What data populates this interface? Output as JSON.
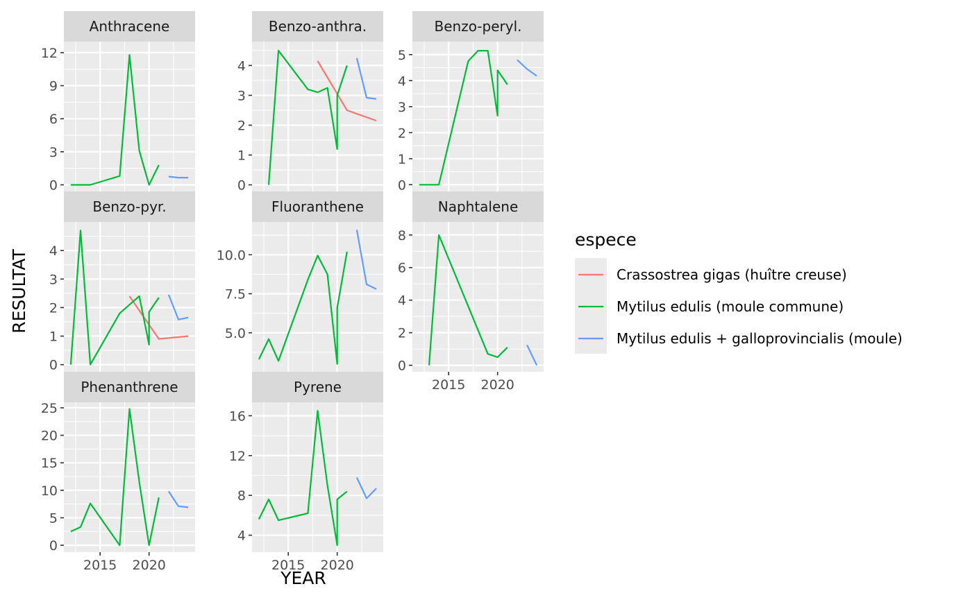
{
  "chart_data": {
    "type": "line",
    "facet_wrap": true,
    "xlabel": "YEAR",
    "ylabel": "RESULTAT",
    "x_ticks": [
      2015,
      2020
    ],
    "xlim": [
      2011.3,
      2024.7
    ],
    "legend": {
      "title": "espece",
      "position": "right",
      "entries": [
        "Crassostrea gigas (huître creuse)",
        "Mytilus edulis (moule commune)",
        "Mytilus edulis + galloprovincialis (moule)"
      ],
      "colors": [
        "#F8766D",
        "#00BA38",
        "#619CFF"
      ]
    },
    "panels": [
      {
        "name": "Anthracene",
        "ylim": [
          -0.6,
          13.0
        ],
        "y_ticks": [
          0,
          3,
          6,
          9,
          12
        ],
        "series": [
          {
            "species": 1,
            "x": [
              2012,
              2014,
              2017,
              2018,
              2019,
              2020,
              2021
            ],
            "y": [
              0,
              0,
              0.8,
              11.8,
              3.1,
              0,
              1.8
            ]
          },
          {
            "species": 2,
            "x": [
              2022,
              2023,
              2024
            ],
            "y": [
              0.75,
              0.65,
              0.65
            ]
          }
        ]
      },
      {
        "name": "Benzo-anthra.",
        "ylim": [
          -0.22,
          4.8
        ],
        "y_ticks": [
          0,
          1,
          2,
          3,
          4
        ],
        "series": [
          {
            "species": 0,
            "x": [
              2018,
              2020,
              2021,
              2024
            ],
            "y": [
              4.15,
              3.05,
              2.5,
              2.15
            ]
          },
          {
            "species": 1,
            "x": [
              2013,
              2014,
              2017,
              2018,
              2019,
              2020,
              2020,
              2021
            ],
            "y": [
              0,
              4.5,
              3.2,
              3.1,
              3.25,
              1.2,
              3.0,
              4.0
            ]
          },
          {
            "species": 2,
            "x": [
              2022,
              2023,
              2024
            ],
            "y": [
              4.25,
              2.92,
              2.88
            ]
          }
        ]
      },
      {
        "name": "Benzo-peryl.",
        "ylim": [
          -0.26,
          5.5
        ],
        "y_ticks": [
          0,
          1,
          2,
          3,
          4,
          5
        ],
        "series": [
          {
            "species": 1,
            "x": [
              2012,
              2014,
              2017,
              2018,
              2019,
              2020,
              2020,
              2021
            ],
            "y": [
              0,
              0,
              4.75,
              5.15,
              5.15,
              2.65,
              4.4,
              3.85
            ]
          },
          {
            "species": 2,
            "x": [
              2022,
              2023,
              2024
            ],
            "y": [
              4.8,
              4.45,
              4.18
            ]
          }
        ]
      },
      {
        "name": "Benzo-pyr.",
        "ylim": [
          -0.25,
          5.0
        ],
        "y_ticks": [
          0,
          1,
          2,
          3,
          4
        ],
        "series": [
          {
            "species": 0,
            "x": [
              2018,
              2021,
              2024
            ],
            "y": [
              2.4,
              0.9,
              1.0
            ]
          },
          {
            "species": 1,
            "x": [
              2012,
              2013,
              2014,
              2017,
              2018,
              2019,
              2020,
              2020,
              2021
            ],
            "y": [
              0,
              4.7,
              0,
              1.8,
              2.1,
              2.4,
              0.7,
              1.85,
              2.35
            ]
          },
          {
            "species": 2,
            "x": [
              2022,
              2023,
              2024
            ],
            "y": [
              2.45,
              1.58,
              1.65
            ]
          }
        ]
      },
      {
        "name": "Fluoranthene",
        "ylim": [
          2.5,
          12.1
        ],
        "y_ticks": [
          5.0,
          7.5,
          10.0
        ],
        "y_tick_labels": [
          "5.0",
          "7.5",
          "10.0"
        ],
        "series": [
          {
            "species": 1,
            "x": [
              2012,
              2013,
              2014,
              2017,
              2018,
              2019,
              2020,
              2020,
              2021
            ],
            "y": [
              3.3,
              4.6,
              3.2,
              8.4,
              9.95,
              8.75,
              3.0,
              6.6,
              10.2
            ]
          },
          {
            "species": 2,
            "x": [
              2022,
              2023,
              2024
            ],
            "y": [
              11.6,
              8.1,
              7.8
            ]
          }
        ]
      },
      {
        "name": "Naphtalene",
        "ylim": [
          -0.4,
          8.8
        ],
        "y_ticks": [
          0,
          2,
          4,
          6,
          8
        ],
        "series": [
          {
            "species": 1,
            "x": [
              2013,
              2014,
              2019,
              2020,
              2021
            ],
            "y": [
              0,
              8.0,
              0.7,
              0.5,
              1.1
            ]
          },
          {
            "species": 2,
            "x": [
              2023,
              2024
            ],
            "y": [
              1.25,
              0
            ]
          }
        ]
      },
      {
        "name": "Phenanthrene",
        "ylim": [
          -1.25,
          26.0
        ],
        "y_ticks": [
          0,
          5,
          10,
          15,
          20,
          25
        ],
        "series": [
          {
            "species": 1,
            "x": [
              2012,
              2013,
              2014,
              2017,
              2018,
              2019,
              2020,
              2021
            ],
            "y": [
              2.5,
              3.3,
              7.6,
              0,
              24.8,
              11.5,
              0,
              8.7
            ]
          },
          {
            "species": 2,
            "x": [
              2022,
              2023,
              2024
            ],
            "y": [
              9.8,
              7.1,
              6.9
            ]
          }
        ]
      },
      {
        "name": "Pyrene",
        "ylim": [
          2.3,
          17.35
        ],
        "y_ticks": [
          4,
          8,
          12,
          16
        ],
        "series": [
          {
            "species": 1,
            "x": [
              2012,
              2013,
              2014,
              2017,
              2018,
              2019,
              2020,
              2020,
              2021
            ],
            "y": [
              5.6,
              7.6,
              5.5,
              6.2,
              16.5,
              9.0,
              3.0,
              7.6,
              8.4
            ]
          },
          {
            "species": 2,
            "x": [
              2022,
              2023,
              2024
            ],
            "y": [
              9.8,
              7.7,
              8.7
            ]
          }
        ]
      }
    ]
  }
}
